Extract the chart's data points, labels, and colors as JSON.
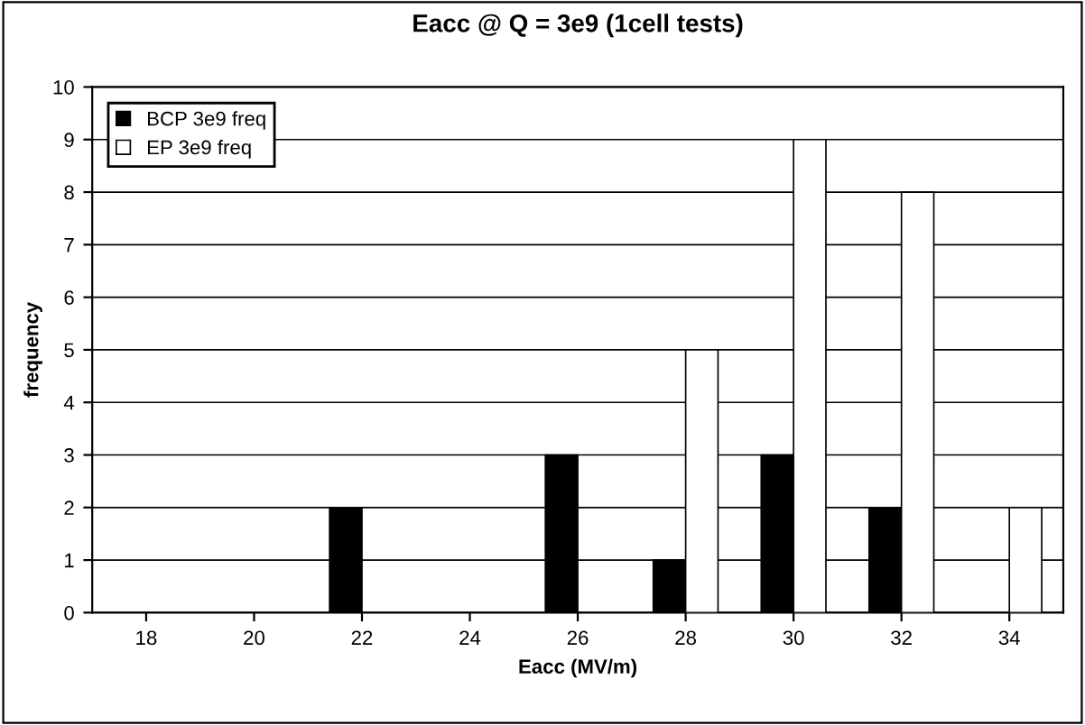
{
  "chart_data": {
    "type": "bar",
    "title": "Eacc @ Q = 3e9 (1cell tests)",
    "xlabel": "Eacc (MV/m)",
    "ylabel": "frequency",
    "categories": [
      "18",
      "20",
      "22",
      "24",
      "26",
      "28",
      "30",
      "32",
      "34"
    ],
    "series": [
      {
        "name": "BCP 3e9 freq",
        "color": "#000000",
        "values": [
          0,
          0,
          2,
          0,
          3,
          1,
          3,
          2,
          0
        ]
      },
      {
        "name": "EP 3e9 freq",
        "color": "#ffffff",
        "values": [
          0,
          0,
          0,
          0,
          0,
          5,
          9,
          8,
          2
        ]
      }
    ],
    "ylim": [
      0,
      10
    ],
    "yticks": [
      0,
      1,
      2,
      3,
      4,
      5,
      6,
      7,
      8,
      9,
      10
    ],
    "grid": "y",
    "legend": "top left"
  }
}
